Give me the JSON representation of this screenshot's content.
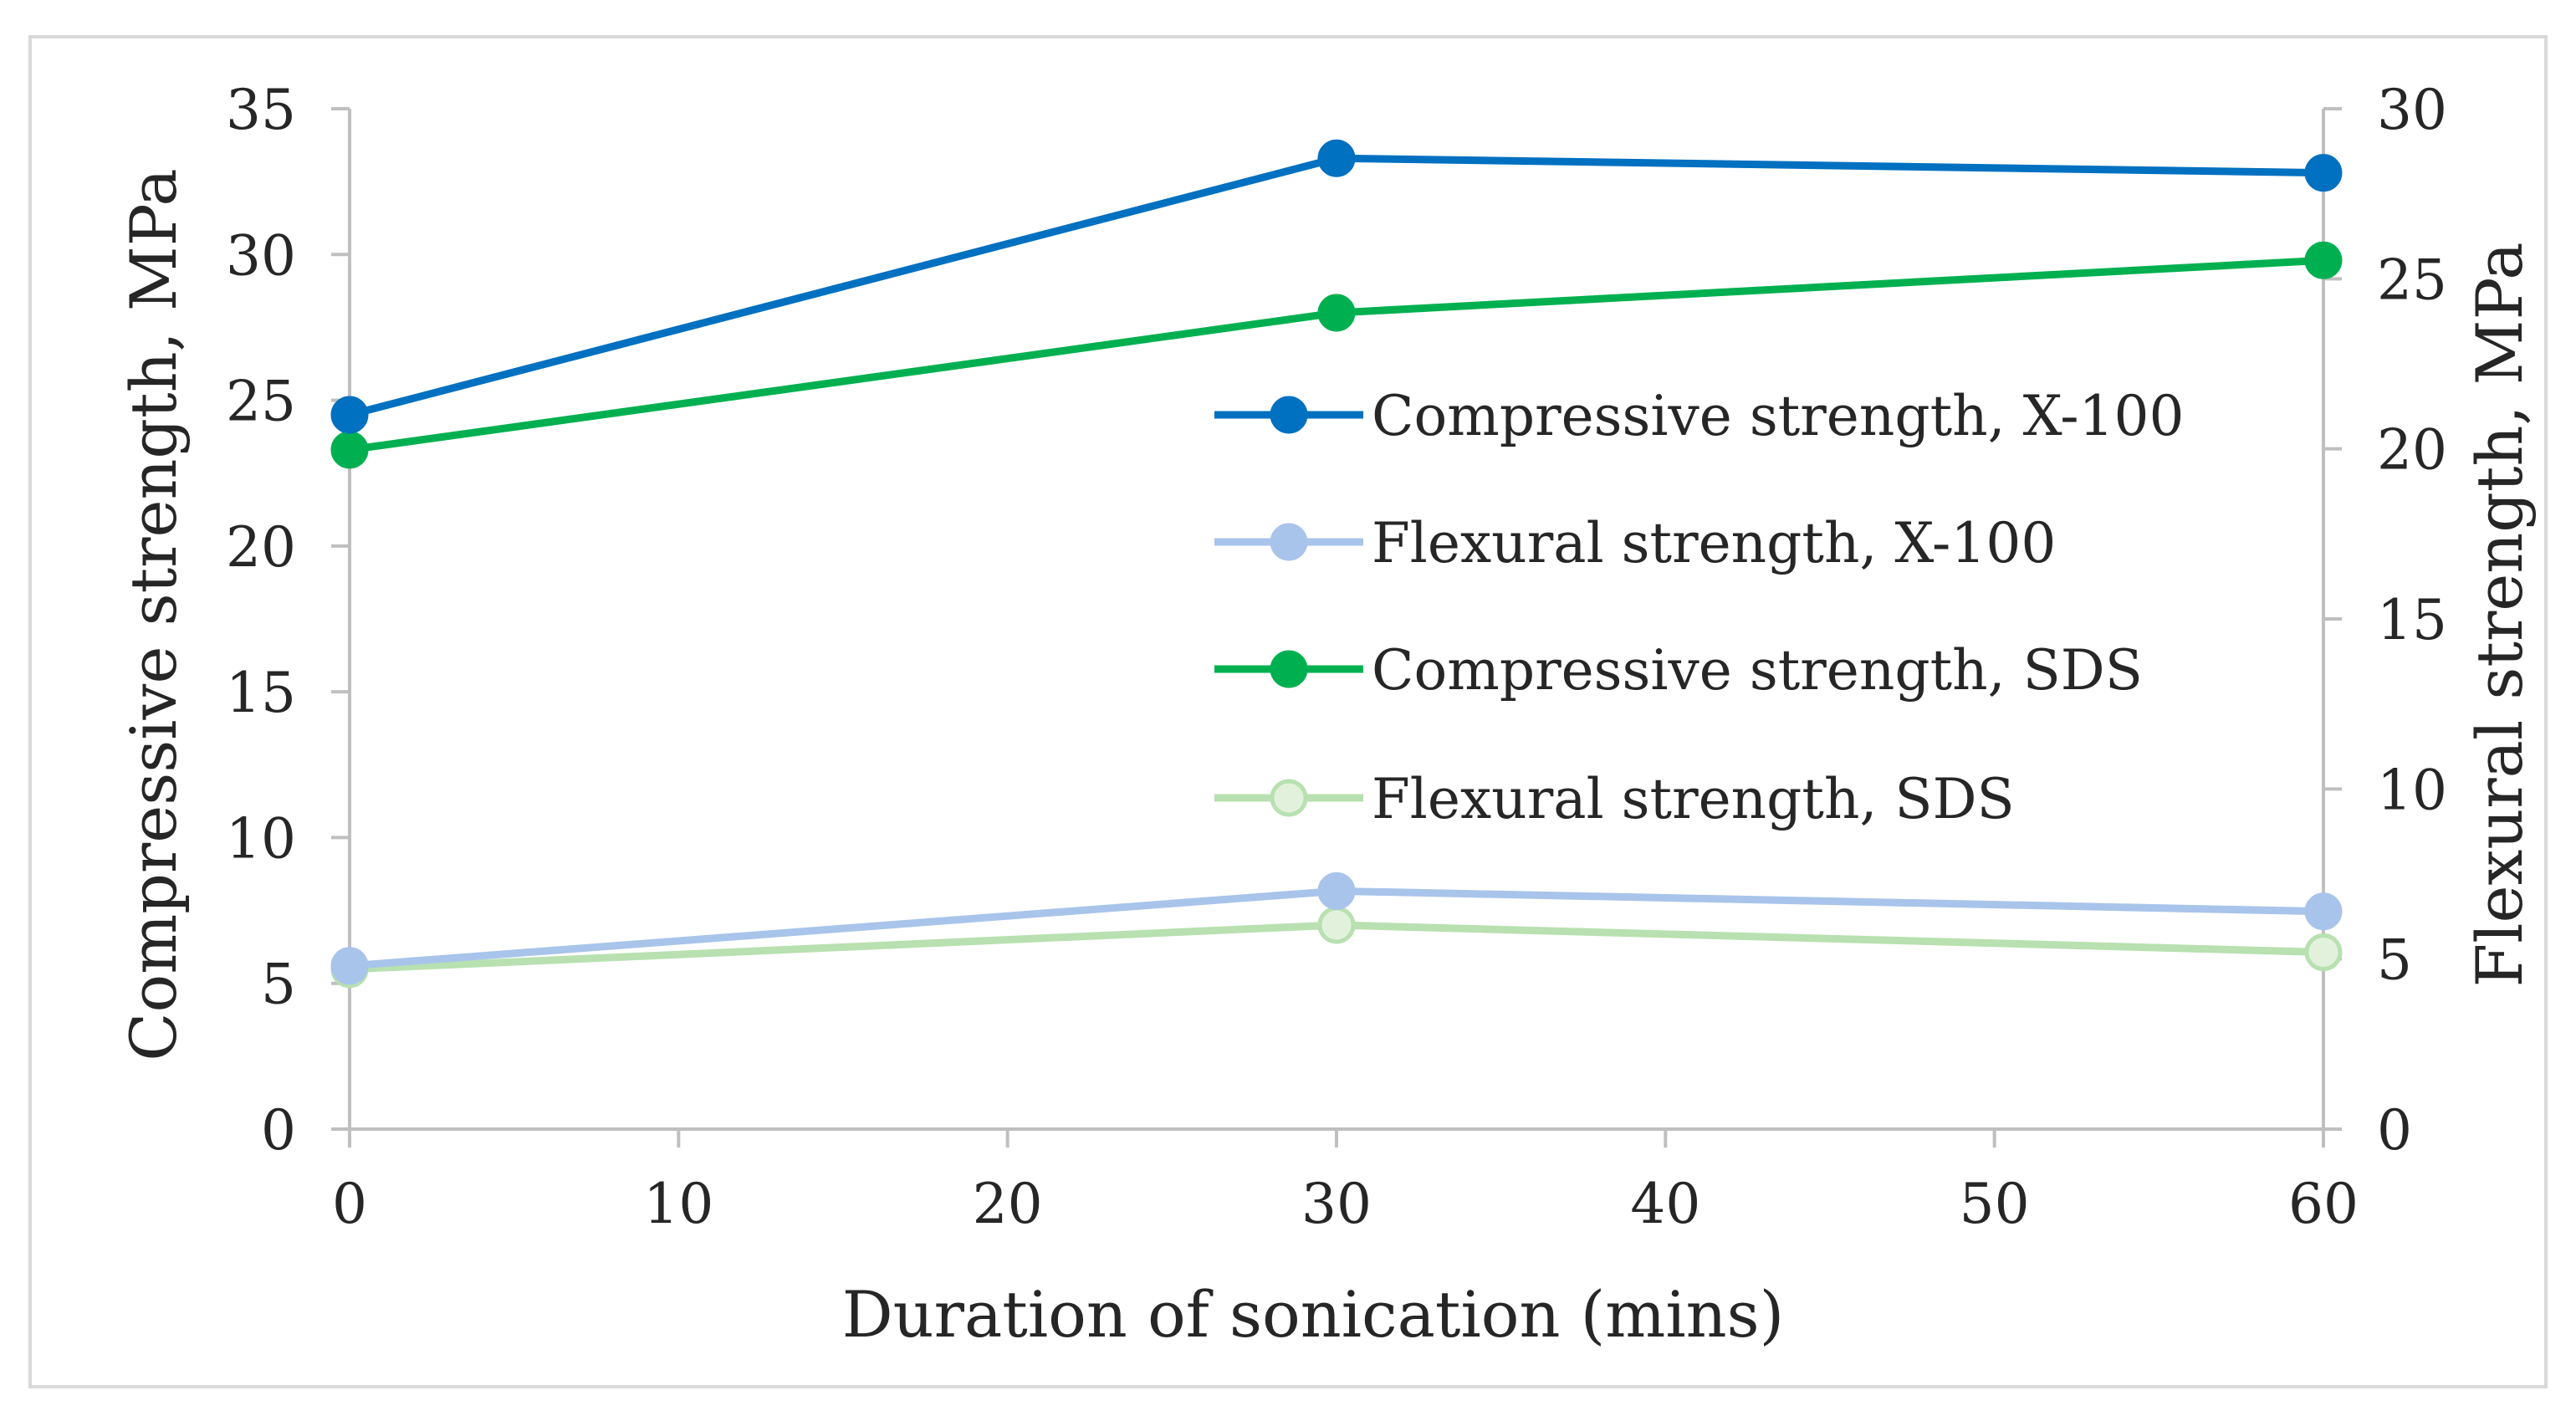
{
  "chart_data": {
    "type": "line",
    "title": "",
    "xlabel": "Duration of sonication (mins)",
    "ylabel": "Compressive strength, MPa",
    "y2label": "Flexural strength, MPa",
    "x_ticks": [
      "0",
      "10",
      "20",
      "30",
      "40",
      "50",
      "60"
    ],
    "y_ticks": [
      "0",
      "5",
      "10",
      "15",
      "20",
      "25",
      "30",
      "35"
    ],
    "y2_ticks": [
      "0",
      "5",
      "10",
      "15",
      "20",
      "25",
      "30"
    ],
    "xlim": [
      0,
      60
    ],
    "ylim": [
      0,
      35
    ],
    "y2lim": [
      0,
      30
    ],
    "grid": false,
    "legend_position": "center-right",
    "series": [
      {
        "name": "Compressive strength, X-100",
        "axis": "left",
        "x": [
          0,
          30,
          60
        ],
        "values": [
          24.5,
          33.3,
          32.8
        ],
        "color": "#0070C0",
        "marker": "filled"
      },
      {
        "name": "Flexural strength, X-100",
        "axis": "right",
        "x": [
          0,
          30,
          60
        ],
        "values": [
          4.8,
          7.0,
          6.4
        ],
        "color": "#A9C4EB",
        "marker": "filled"
      },
      {
        "name": "Compressive strength, SDS",
        "axis": "left",
        "x": [
          0,
          30,
          60
        ],
        "values": [
          23.3,
          28.0,
          29.8
        ],
        "color": "#00B050",
        "marker": "filled"
      },
      {
        "name": "Flexural strength, SDS",
        "axis": "right",
        "x": [
          0,
          30,
          60
        ],
        "values": [
          4.7,
          6.0,
          5.2
        ],
        "color": "#B8E0B0",
        "marker": "hollow",
        "marker_fill": "#E2F1DC"
      }
    ]
  },
  "colors": {
    "axis": "#BFBFBF",
    "frame": "#D9D9D9",
    "text": "#262626"
  }
}
